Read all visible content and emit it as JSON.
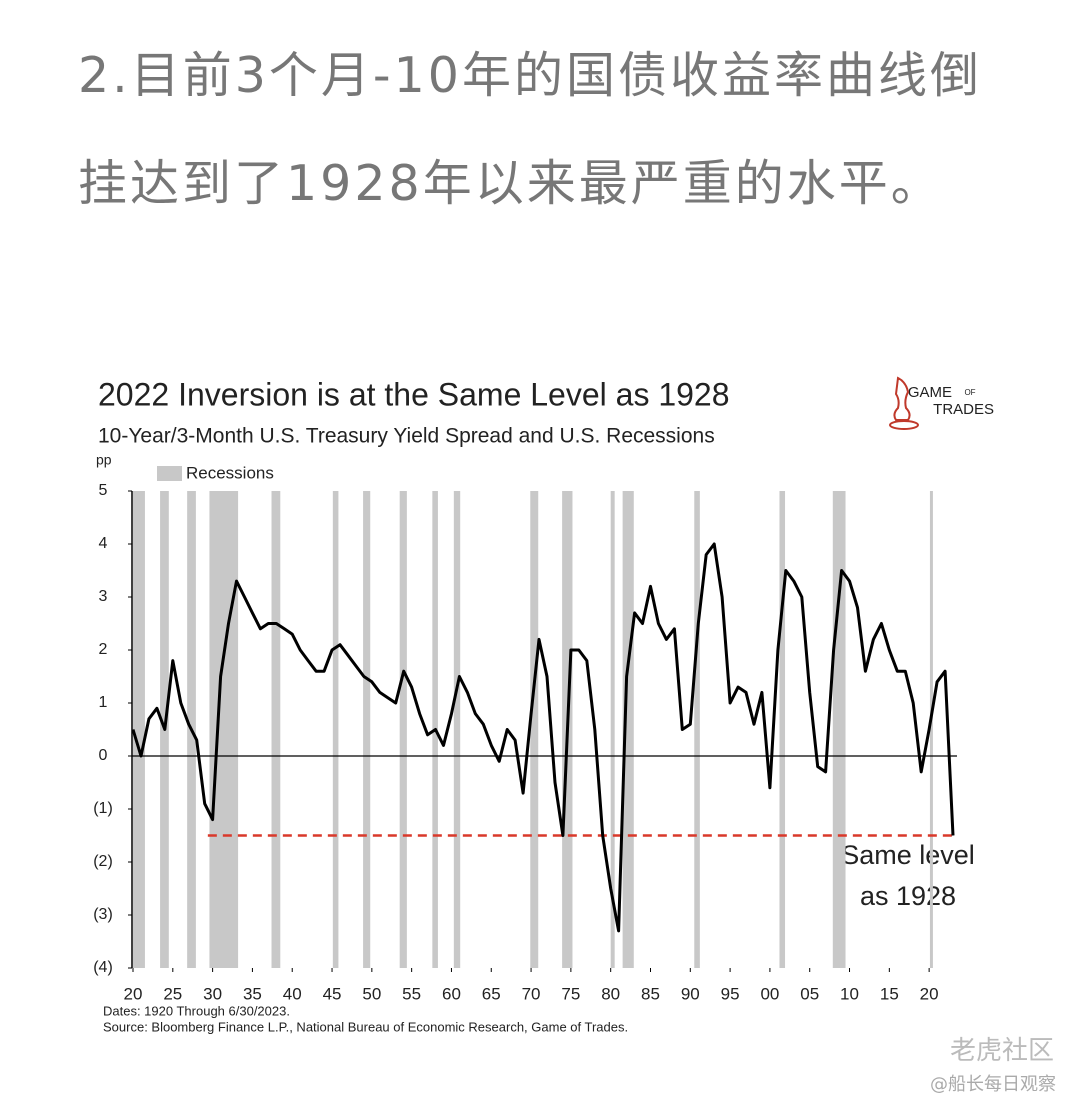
{
  "heading": "2.目前3个月-10年的国债收益率曲线倒挂达到了1928年以来最严重的水平。",
  "logo": [
    "GAME",
    "OF",
    "TRADES"
  ],
  "watermarks": [
    "老虎社区",
    "@船长每日观察"
  ],
  "chart_data": {
    "type": "line",
    "title": "2022 Inversion is at the Same Level as 1928",
    "subtitle": "10-Year/3-Month U.S. Treasury Yield Spread and U.S. Recessions",
    "y_label": "pp",
    "notes": [
      "Dates: 1920 Through 6/30/2023.",
      "Source: Bloomberg Finance L.P., National Bureau of Economic Research, Game of Trades."
    ],
    "annotation": [
      "Same level",
      "as 1928"
    ],
    "xlim": [
      1920,
      2023.5
    ],
    "ylim": [
      -4,
      5
    ],
    "xticks": [
      {
        "value": 1920,
        "label": "20"
      },
      {
        "value": 1925,
        "label": "25"
      },
      {
        "value": 1930,
        "label": "30"
      },
      {
        "value": 1935,
        "label": "35"
      },
      {
        "value": 1940,
        "label": "40"
      },
      {
        "value": 1945,
        "label": "45"
      },
      {
        "value": 1950,
        "label": "50"
      },
      {
        "value": 1955,
        "label": "55"
      },
      {
        "value": 1960,
        "label": "60"
      },
      {
        "value": 1965,
        "label": "65"
      },
      {
        "value": 1970,
        "label": "70"
      },
      {
        "value": 1975,
        "label": "75"
      },
      {
        "value": 1980,
        "label": "80"
      },
      {
        "value": 1985,
        "label": "85"
      },
      {
        "value": 1990,
        "label": "90"
      },
      {
        "value": 1995,
        "label": "95"
      },
      {
        "value": 2000,
        "label": "00"
      },
      {
        "value": 2005,
        "label": "05"
      },
      {
        "value": 2010,
        "label": "10"
      },
      {
        "value": 2015,
        "label": "15"
      },
      {
        "value": 2020,
        "label": "20"
      }
    ],
    "yticks": [
      5,
      4,
      3,
      2,
      1,
      0,
      {
        "value": -1,
        "label": "(1)"
      },
      {
        "value": -2,
        "label": "(2)"
      },
      {
        "value": -3,
        "label": "(3)"
      },
      {
        "value": -4,
        "label": "(4)"
      }
    ],
    "zero_line": 0,
    "reference_line": {
      "value": -1.5,
      "x_range": [
        1929.4,
        2023.3
      ],
      "color": "#d9382a"
    },
    "recessions": {
      "name": "Recessions",
      "color": "#c8c8c8",
      "periods": [
        [
          1920.0,
          1921.5
        ],
        [
          1923.4,
          1924.5
        ],
        [
          1926.8,
          1927.9
        ],
        [
          1929.6,
          1933.2
        ],
        [
          1937.4,
          1938.5
        ],
        [
          1945.1,
          1945.8
        ],
        [
          1948.9,
          1949.8
        ],
        [
          1953.5,
          1954.4
        ],
        [
          1957.6,
          1958.3
        ],
        [
          1960.3,
          1961.1
        ],
        [
          1969.9,
          1970.9
        ],
        [
          1973.9,
          1975.2
        ],
        [
          1980.0,
          1980.5
        ],
        [
          1981.5,
          1982.9
        ],
        [
          1990.5,
          1991.2
        ],
        [
          2001.2,
          2001.9
        ],
        [
          2007.9,
          2009.5
        ],
        [
          2020.1,
          2020.4
        ]
      ]
    },
    "x": [
      1920,
      1921,
      1922,
      1923,
      1924,
      1925,
      1926,
      1927,
      1928,
      1929,
      1930,
      1931,
      1932,
      1933,
      1934,
      1935,
      1936,
      1937,
      1938,
      1939,
      1940,
      1941,
      1942,
      1943,
      1944,
      1945,
      1946,
      1947,
      1948,
      1949,
      1950,
      1951,
      1952,
      1953,
      1954,
      1955,
      1956,
      1957,
      1958,
      1959,
      1960,
      1961,
      1962,
      1963,
      1964,
      1965,
      1966,
      1967,
      1968,
      1969,
      1970,
      1971,
      1972,
      1973,
      1974,
      1975,
      1976,
      1977,
      1978,
      1979,
      1980,
      1981,
      1982,
      1983,
      1984,
      1985,
      1986,
      1987,
      1988,
      1989,
      1990,
      1991,
      1992,
      1993,
      1994,
      1995,
      1996,
      1997,
      1998,
      1999,
      2000,
      2001,
      2002,
      2003,
      2004,
      2005,
      2006,
      2007,
      2008,
      2009,
      2010,
      2011,
      2012,
      2013,
      2014,
      2015,
      2016,
      2017,
      2018,
      2019,
      2020,
      2021,
      2022,
      2023
    ],
    "series": [
      {
        "name": "10-Year/3-Month Spread",
        "color": "#000000",
        "values": [
          0.5,
          0.0,
          0.7,
          0.9,
          0.5,
          1.8,
          1.0,
          0.6,
          0.3,
          -0.9,
          -1.2,
          1.5,
          2.5,
          3.3,
          3.0,
          2.7,
          2.4,
          2.5,
          2.5,
          2.4,
          2.3,
          2.0,
          1.8,
          1.6,
          1.6,
          2.0,
          2.1,
          1.9,
          1.7,
          1.5,
          1.4,
          1.2,
          1.1,
          1.0,
          1.6,
          1.3,
          0.8,
          0.4,
          0.5,
          0.2,
          0.8,
          1.5,
          1.2,
          0.8,
          0.6,
          0.2,
          -0.1,
          0.5,
          0.3,
          -0.7,
          0.8,
          2.2,
          1.5,
          -0.5,
          -1.5,
          2.0,
          2.0,
          1.8,
          0.5,
          -1.5,
          -2.5,
          -3.3,
          1.5,
          2.7,
          2.5,
          3.2,
          2.5,
          2.2,
          2.4,
          0.5,
          0.6,
          2.5,
          3.8,
          4.0,
          3.0,
          1.0,
          1.3,
          1.2,
          0.6,
          1.2,
          -0.6,
          2.0,
          3.5,
          3.3,
          3.0,
          1.2,
          -0.2,
          -0.3,
          2.0,
          3.5,
          3.3,
          2.8,
          1.6,
          2.2,
          2.5,
          2.0,
          1.6,
          1.6,
          1.0,
          -0.3,
          0.5,
          1.4,
          1.6,
          -1.5
        ]
      }
    ]
  }
}
